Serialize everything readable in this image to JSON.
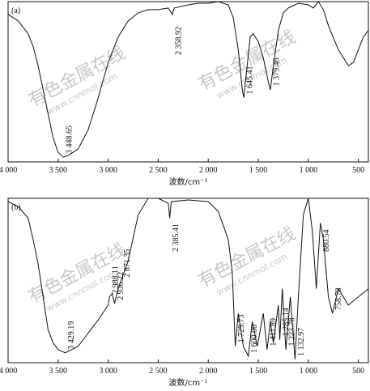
{
  "chart_data": [
    {
      "type": "line",
      "panel_label": "(a)",
      "x_label": "波数/cm⁻¹",
      "watermark": [
        "有色金属在线",
        "www.cnnmol.com"
      ],
      "xlim": [
        4000,
        400
      ],
      "ylim": [
        0,
        100
      ],
      "xticks": [
        {
          "value": 4000,
          "label": "4 000"
        },
        {
          "value": 3500,
          "label": "3 500"
        },
        {
          "value": 3000,
          "label": "3 000"
        },
        {
          "value": 2500,
          "label": "2 500"
        },
        {
          "value": 2000,
          "label": "2 000"
        },
        {
          "value": 1500,
          "label": "1 500"
        },
        {
          "value": 1000,
          "label": "1 000"
        },
        500
      ],
      "x": [
        4000,
        3900,
        3800,
        3750,
        3700,
        3650,
        3600,
        3550,
        3500,
        3448,
        3400,
        3300,
        3200,
        3100,
        3000,
        2900,
        2800,
        2700,
        2600,
        2500,
        2400,
        2360,
        2340,
        2200,
        2100,
        2000,
        1900,
        1800,
        1750,
        1700,
        1660,
        1645,
        1620,
        1580,
        1550,
        1500,
        1450,
        1400,
        1380,
        1350,
        1300,
        1250,
        1200,
        1100,
        1000,
        950,
        900,
        850,
        800,
        700,
        600,
        550,
        500,
        450,
        400
      ],
      "series": [
        {
          "color": "#111111",
          "values": [
            92,
            88,
            80,
            72,
            60,
            45,
            30,
            15,
            6,
            3,
            4,
            8,
            20,
            40,
            62,
            78,
            88,
            93,
            95,
            95,
            96,
            92,
            96,
            98,
            99,
            99,
            100,
            98,
            90,
            70,
            45,
            40,
            55,
            78,
            80,
            75,
            65,
            50,
            45,
            60,
            82,
            93,
            96,
            99,
            98,
            96,
            100,
            95,
            85,
            70,
            60,
            62,
            70,
            78,
            82
          ]
        }
      ],
      "annotations": [
        {
          "value": 3448.65,
          "label": "3 448.65"
        },
        {
          "value": 2358.92,
          "label": "2 358.92"
        },
        {
          "value": 1645.41,
          "label": "1 645.41"
        },
        {
          "value": 1379.46,
          "label": "1 379.46"
        }
      ]
    },
    {
      "type": "line",
      "panel_label": "(b)",
      "x_label": "波数/cm⁻¹",
      "watermark": [
        "有色金属在线",
        "www.cnnmol.com"
      ],
      "xlim": [
        4000,
        400
      ],
      "ylim": [
        0,
        100
      ],
      "xticks": [
        {
          "value": 4000,
          "label": "4 000"
        },
        {
          "value": 3500,
          "label": "3 500"
        },
        {
          "value": 3000,
          "label": "3 000"
        },
        {
          "value": 2500,
          "label": "2 500"
        },
        {
          "value": 2000,
          "label": "2 000"
        },
        {
          "value": 1500,
          "label": "1 500"
        },
        {
          "value": 1000,
          "label": "1 000"
        },
        500
      ],
      "x": [
        4000,
        3900,
        3800,
        3750,
        3700,
        3650,
        3600,
        3550,
        3500,
        3430,
        3300,
        3200,
        3100,
        3000,
        2988,
        2960,
        2936,
        2900,
        2871,
        2800,
        2700,
        2600,
        2500,
        2400,
        2385,
        2370,
        2200,
        2000,
        1900,
        1800,
        1760,
        1730,
        1700,
        1650,
        1600,
        1560,
        1510,
        1450,
        1412,
        1380,
        1350,
        1300,
        1285,
        1260,
        1224,
        1180,
        1133,
        1100,
        1050,
        1000,
        960,
        920,
        880,
        850,
        800,
        759,
        700,
        600,
        500,
        400
      ],
      "series": [
        {
          "color": "#111111",
          "values": [
            98,
            95,
            88,
            75,
            60,
            40,
            20,
            12,
            8,
            6,
            10,
            18,
            26,
            35,
            40,
            42,
            36,
            45,
            50,
            62,
            90,
            100,
            100,
            97,
            88,
            98,
            99,
            98,
            92,
            75,
            55,
            10,
            30,
            10,
            4,
            25,
            10,
            30,
            8,
            25,
            12,
            35,
            14,
            45,
            8,
            40,
            2,
            40,
            90,
            100,
            80,
            45,
            85,
            75,
            40,
            30,
            45,
            35,
            40,
            45
          ]
        }
      ],
      "annotations": [
        {
          "value": 3429.19,
          "label": "3 429.19"
        },
        {
          "value": 2988.11,
          "label": "2 988.11"
        },
        {
          "value": 2936.22,
          "label": "2 936.22"
        },
        {
          "value": 2871.35,
          "label": "2 871.35"
        },
        {
          "value": 2385.41,
          "label": "2 385.41"
        },
        {
          "value": 1729.73,
          "label": "1 729.73"
        },
        {
          "value": 1600.0,
          "label": "1 600.00"
        },
        {
          "value": 1411.89,
          "label": "1 411.89"
        },
        {
          "value": 1223.78,
          "label": "1 223.78"
        },
        {
          "value": 1285.14,
          "label": "1 285.14"
        },
        {
          "value": 1132.97,
          "label": "1 132.97"
        },
        {
          "value": 880.54,
          "label": "880.54"
        },
        {
          "value": 758.78,
          "label": "758.78"
        }
      ]
    }
  ]
}
